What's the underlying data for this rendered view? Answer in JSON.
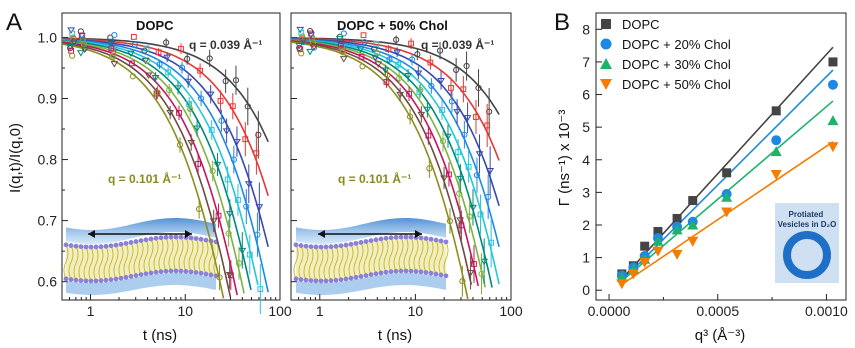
{
  "chart_data": [
    {
      "panel": "A",
      "type": "scatter",
      "title": "DOPC",
      "xlabel": "t (ns)",
      "ylabel": "I(q,t)/I(q,0)",
      "x_scale": "log",
      "xlim": [
        0.5,
        100
      ],
      "ylim": [
        0.57,
        1.04
      ],
      "x_ticks": [
        "1",
        "10",
        "100"
      ],
      "y_ticks": [
        "0.6",
        "0.7",
        "0.8",
        "0.9",
        "1.0"
      ],
      "annotations": [
        {
          "text": "q = 0.039 Å⁻¹",
          "color": "#333333"
        },
        {
          "text": "q = 0.101 Å⁻¹",
          "color": "#8a8a1a"
        }
      ],
      "t": [
        0.64,
        0.83,
        1.7,
        2.8,
        3.9,
        5.1,
        6.6,
        8.8,
        11,
        14,
        19,
        23,
        28,
        31,
        36,
        42,
        48,
        55,
        62
      ],
      "decay_rates": [
        0.0025,
        0.004,
        0.0056,
        0.0072,
        0.0089,
        0.0108,
        0.013,
        0.0155,
        0.0185,
        0.022
      ],
      "series_colors": [
        "#444444",
        "#e53935",
        "#3949ab",
        "#1e88e5",
        "#26c6da",
        "#00897b",
        "#7cb342",
        "#c2185b",
        "#6d4c41",
        "#8d8d1f"
      ]
    },
    {
      "panel": "A",
      "type": "scatter",
      "title": "DOPC + 50% Chol",
      "xlabel": "t (ns)",
      "x_scale": "log",
      "xlim": [
        0.5,
        100
      ],
      "ylim": [
        0.57,
        1.04
      ],
      "x_ticks": [
        "1",
        "10",
        "100"
      ],
      "annotations": [
        {
          "text": "q = 0.039 Å⁻¹",
          "color": "#333333"
        },
        {
          "text": "q = 0.101 Å⁻¹",
          "color": "#8a8a1a"
        }
      ],
      "t": [
        0.64,
        0.83,
        1.7,
        2.8,
        3.9,
        5.1,
        6.6,
        8.8,
        11,
        14,
        19,
        23,
        28,
        31,
        36,
        42,
        48,
        55,
        62
      ],
      "decay_rates": [
        0.0018,
        0.003,
        0.0043,
        0.0056,
        0.0069,
        0.0083,
        0.0098,
        0.0115,
        0.0135,
        0.0158
      ],
      "series_colors": [
        "#444444",
        "#e53935",
        "#3949ab",
        "#1e88e5",
        "#26c6da",
        "#00897b",
        "#7cb342",
        "#c2185b",
        "#6d4c41",
        "#8d8d1f"
      ]
    },
    {
      "panel": "B",
      "type": "scatter",
      "xlabel": "q³ (Å⁻³)",
      "ylabel": "Γ (ns⁻¹) x 10⁻³",
      "xlim": [
        -6e-05,
        0.00109
      ],
      "ylim": [
        -0.3,
        8.5
      ],
      "x_ticks": [
        "0.0000",
        "0.0005",
        "0.0010"
      ],
      "y_ticks": [
        "0",
        "1",
        "2",
        "3",
        "4",
        "5",
        "6",
        "7",
        "8"
      ],
      "legend_position": "top-left",
      "x": [
        5.9e-05,
        0.000112,
        0.000164,
        0.000225,
        0.000313,
        0.000385,
        0.000541,
        0.000769,
        0.00103
      ],
      "series": [
        {
          "name": "DOPC",
          "marker": "square",
          "color": "#444444",
          "values": [
            0.5,
            0.75,
            1.35,
            1.8,
            2.2,
            2.75,
            3.6,
            5.5,
            7.0
          ],
          "fit": [
            0.3,
            7.45
          ]
        },
        {
          "name": "DOPC + 20% Chol",
          "marker": "circle",
          "color": "#1e88e5",
          "values": [
            0.45,
            0.7,
            1.05,
            1.6,
            1.95,
            2.1,
            2.95,
            4.6,
            6.3
          ],
          "fit": [
            0.25,
            6.75
          ]
        },
        {
          "name": "DOPC + 30% Chol",
          "marker": "triangle-up",
          "color": "#1db36b",
          "values": [
            0.4,
            0.65,
            0.95,
            1.5,
            1.85,
            2.0,
            2.85,
            4.25,
            5.2
          ],
          "fit": [
            0.25,
            5.8
          ]
        },
        {
          "name": "DOPC + 50% Chol",
          "marker": "triangle-down",
          "color": "#f57c00",
          "values": [
            0.2,
            0.5,
            0.85,
            1.2,
            1.1,
            1.5,
            2.4,
            3.55,
            4.4
          ],
          "fit": [
            0.15,
            4.55
          ]
        }
      ],
      "inset_label": "Protiated Vesicles in D₂O"
    }
  ],
  "labels": {
    "panel_a": "A",
    "panel_b": "B"
  },
  "colors": {
    "membrane_blue": "#1e6fc8",
    "headgroup": "#8a80d8",
    "tail": "#c9b428",
    "inset_bg": "#cfe0f2",
    "vesicle": "#1e6fc8"
  }
}
